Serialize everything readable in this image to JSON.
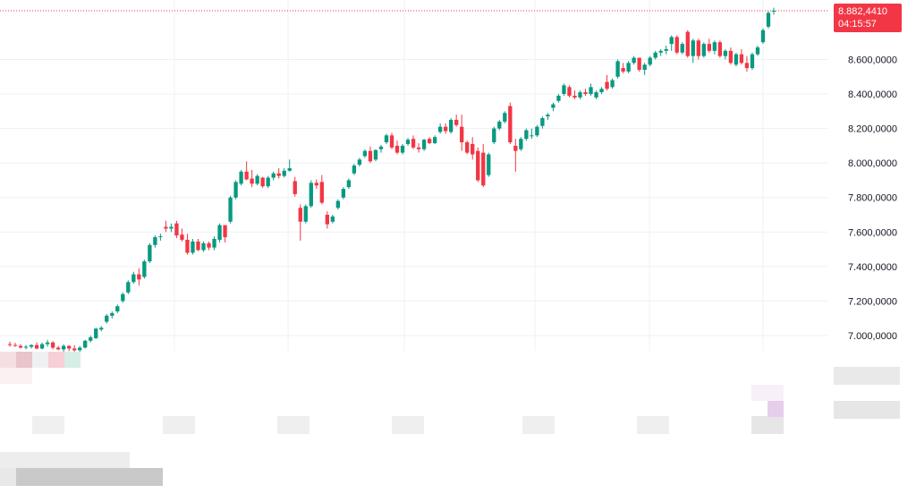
{
  "chart_data": {
    "type": "candlestick",
    "y_axis": {
      "position": "right",
      "ticks": [
        7000,
        7200,
        7400,
        7600,
        7800,
        8000,
        8200,
        8400,
        8600
      ],
      "tick_labels": [
        "7.000,0000",
        "7.200,0000",
        "7.400,0000",
        "7.600,0000",
        "7.800,0000",
        "8.000,0000",
        "8.200,0000",
        "8.400,0000",
        "8.600,0000"
      ],
      "range": [
        6900,
        8920
      ]
    },
    "last_price": {
      "value": 8882.441,
      "label": "8.882,4410",
      "countdown": "04:15:57"
    },
    "grid": true,
    "colors": {
      "up": "#089981",
      "down": "#f23645",
      "grid": "#eef0f3",
      "last_price_line": "#f23645"
    },
    "candles": [
      [
        6950,
        6965,
        6935,
        6945
      ],
      [
        6945,
        6958,
        6935,
        6940
      ],
      [
        6940,
        6950,
        6925,
        6930
      ],
      [
        6930,
        6945,
        6920,
        6935
      ],
      [
        6935,
        6950,
        6925,
        6945
      ],
      [
        6945,
        6960,
        6920,
        6925
      ],
      [
        6925,
        6960,
        6920,
        6950
      ],
      [
        6950,
        6975,
        6935,
        6960
      ],
      [
        6960,
        6968,
        6920,
        6930
      ],
      [
        6930,
        6940,
        6915,
        6920
      ],
      [
        6920,
        6950,
        6905,
        6940
      ],
      [
        6940,
        6945,
        6910,
        6925
      ],
      [
        6925,
        6945,
        6905,
        6915
      ],
      [
        6915,
        6940,
        6905,
        6930
      ],
      [
        6930,
        6975,
        6925,
        6970
      ],
      [
        6970,
        7000,
        6960,
        6990
      ],
      [
        6985,
        7045,
        6980,
        7040
      ],
      [
        7035,
        7055,
        7025,
        7045
      ],
      [
        7080,
        7125,
        7070,
        7115
      ],
      [
        7115,
        7140,
        7100,
        7130
      ],
      [
        7140,
        7180,
        7130,
        7170
      ],
      [
        7200,
        7250,
        7190,
        7240
      ],
      [
        7250,
        7320,
        7240,
        7310
      ],
      [
        7310,
        7370,
        7300,
        7355
      ],
      [
        7355,
        7390,
        7290,
        7325
      ],
      [
        7340,
        7440,
        7330,
        7430
      ],
      [
        7430,
        7535,
        7420,
        7525
      ],
      [
        7525,
        7580,
        7510,
        7570
      ],
      [
        7570,
        7590,
        7550,
        7575
      ],
      [
        7630,
        7665,
        7600,
        7620
      ],
      [
        7620,
        7650,
        7600,
        7630
      ],
      [
        7650,
        7665,
        7565,
        7580
      ],
      [
        7585,
        7620,
        7545,
        7555
      ],
      [
        7555,
        7590,
        7470,
        7480
      ],
      [
        7480,
        7560,
        7470,
        7545
      ],
      [
        7545,
        7560,
        7490,
        7495
      ],
      [
        7495,
        7545,
        7485,
        7535
      ],
      [
        7535,
        7545,
        7495,
        7510
      ],
      [
        7510,
        7575,
        7495,
        7560
      ],
      [
        7555,
        7650,
        7540,
        7640
      ],
      [
        7640,
        7620,
        7540,
        7570
      ],
      [
        7660,
        7810,
        7650,
        7800
      ],
      [
        7800,
        7900,
        7790,
        7890
      ],
      [
        7880,
        7960,
        7870,
        7950
      ],
      [
        7950,
        8010,
        7900,
        7905
      ],
      [
        7910,
        7960,
        7860,
        7880
      ],
      [
        7880,
        7935,
        7870,
        7925
      ],
      [
        7915,
        7920,
        7855,
        7865
      ],
      [
        7865,
        7925,
        7855,
        7915
      ],
      [
        7915,
        7950,
        7900,
        7940
      ],
      [
        7940,
        7970,
        7910,
        7925
      ],
      [
        7925,
        7970,
        7915,
        7955
      ],
      [
        7955,
        8020,
        7950,
        7970
      ],
      [
        7895,
        7920,
        7805,
        7820
      ],
      [
        7740,
        7760,
        7550,
        7660
      ],
      [
        7660,
        7760,
        7650,
        7750
      ],
      [
        7750,
        7900,
        7740,
        7885
      ],
      [
        7885,
        7905,
        7850,
        7870
      ],
      [
        7890,
        7930,
        7760,
        7770
      ],
      [
        7700,
        7720,
        7620,
        7645
      ],
      [
        7660,
        7700,
        7650,
        7690
      ],
      [
        7740,
        7790,
        7730,
        7780
      ],
      [
        7800,
        7860,
        7790,
        7850
      ],
      [
        7860,
        7910,
        7850,
        7900
      ],
      [
        7940,
        7995,
        7930,
        7985
      ],
      [
        7990,
        8030,
        7980,
        8020
      ],
      [
        8040,
        8080,
        8030,
        8070
      ],
      [
        8070,
        8095,
        8000,
        8010
      ],
      [
        8020,
        8080,
        8010,
        8075
      ],
      [
        8080,
        8105,
        8060,
        8095
      ],
      [
        8120,
        8170,
        8110,
        8160
      ],
      [
        8160,
        8175,
        8080,
        8090
      ],
      [
        8100,
        8130,
        8050,
        8060
      ],
      [
        8060,
        8110,
        8050,
        8100
      ],
      [
        8110,
        8145,
        8100,
        8135
      ],
      [
        8140,
        8160,
        8080,
        8090
      ],
      [
        8090,
        8115,
        8060,
        8080
      ],
      [
        8080,
        8140,
        8070,
        8135
      ],
      [
        8140,
        8150,
        8110,
        8115
      ],
      [
        8115,
        8160,
        8110,
        8150
      ],
      [
        8180,
        8230,
        8170,
        8210
      ],
      [
        8210,
        8230,
        8170,
        8185
      ],
      [
        8180,
        8260,
        8170,
        8250
      ],
      [
        8250,
        8280,
        8210,
        8220
      ],
      [
        8210,
        8280,
        8070,
        8120
      ],
      [
        8120,
        8130,
        8050,
        8060
      ],
      [
        8110,
        8150,
        8020,
        8050
      ],
      [
        8070,
        8090,
        7890,
        7900
      ],
      [
        8060,
        8110,
        7860,
        7870
      ],
      [
        7930,
        8060,
        7920,
        8050
      ],
      [
        8120,
        8210,
        8110,
        8200
      ],
      [
        8200,
        8250,
        8190,
        8240
      ],
      [
        8240,
        8300,
        8230,
        8290
      ],
      [
        8330,
        8350,
        8110,
        8120
      ],
      [
        8100,
        8140,
        7950,
        8070
      ],
      [
        8080,
        8150,
        8070,
        8140
      ],
      [
        8140,
        8200,
        8130,
        8190
      ],
      [
        8160,
        8200,
        8140,
        8160
      ],
      [
        8160,
        8220,
        8150,
        8210
      ],
      [
        8215,
        8270,
        8200,
        8260
      ],
      [
        8270,
        8290,
        8250,
        8280
      ],
      [
        8320,
        8350,
        8300,
        8340
      ],
      [
        8360,
        8400,
        8350,
        8390
      ],
      [
        8400,
        8460,
        8390,
        8450
      ],
      [
        8440,
        8450,
        8380,
        8390
      ],
      [
        8390,
        8420,
        8370,
        8380
      ],
      [
        8380,
        8420,
        8370,
        8410
      ],
      [
        8410,
        8430,
        8390,
        8400
      ],
      [
        8400,
        8460,
        8390,
        8440
      ],
      [
        8380,
        8420,
        8370,
        8410
      ],
      [
        8410,
        8440,
        8400,
        8430
      ],
      [
        8470,
        8510,
        8420,
        8430
      ],
      [
        8440,
        8490,
        8430,
        8480
      ],
      [
        8500,
        8600,
        8490,
        8590
      ],
      [
        8550,
        8580,
        8520,
        8530
      ],
      [
        8530,
        8590,
        8520,
        8580
      ],
      [
        8580,
        8620,
        8570,
        8610
      ],
      [
        8610,
        8600,
        8530,
        8540
      ],
      [
        8540,
        8580,
        8510,
        8570
      ],
      [
        8570,
        8620,
        8560,
        8610
      ],
      [
        8610,
        8650,
        8600,
        8640
      ],
      [
        8640,
        8660,
        8620,
        8650
      ],
      [
        8650,
        8680,
        8630,
        8660
      ],
      [
        8690,
        8740,
        8650,
        8730
      ],
      [
        8730,
        8740,
        8630,
        8640
      ],
      [
        8640,
        8700,
        8630,
        8690
      ],
      [
        8760,
        8770,
        8610,
        8620
      ],
      [
        8620,
        8720,
        8580,
        8710
      ],
      [
        8710,
        8720,
        8600,
        8620
      ],
      [
        8620,
        8700,
        8610,
        8690
      ],
      [
        8690,
        8720,
        8640,
        8650
      ],
      [
        8650,
        8710,
        8630,
        8700
      ],
      [
        8700,
        8710,
        8610,
        8620
      ],
      [
        8620,
        8660,
        8600,
        8650
      ],
      [
        8650,
        8670,
        8570,
        8580
      ],
      [
        8570,
        8640,
        8560,
        8630
      ],
      [
        8630,
        8660,
        8570,
        8580
      ],
      [
        8580,
        8620,
        8530,
        8550
      ],
      [
        8550,
        8640,
        8540,
        8630
      ],
      [
        8630,
        8680,
        8620,
        8670
      ],
      [
        8700,
        8780,
        8690,
        8770
      ],
      [
        8790,
        8880,
        8780,
        8870
      ],
      [
        8880,
        8900,
        8860,
        8882.441
      ]
    ]
  }
}
